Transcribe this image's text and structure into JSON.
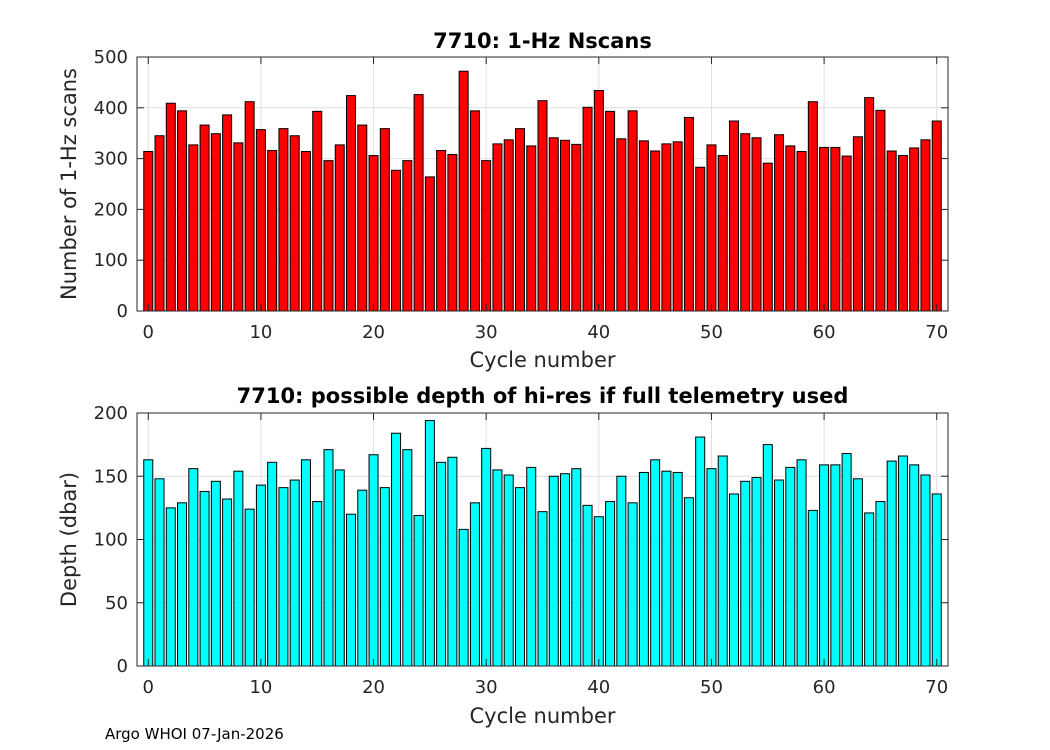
{
  "chart_data": [
    {
      "type": "bar",
      "title": "7710: 1-Hz Nscans",
      "xlabel": "Cycle number",
      "ylabel": "Number of 1-Hz scans",
      "xlim": [
        -1,
        71
      ],
      "ylim": [
        0,
        500
      ],
      "xticks": [
        0,
        10,
        20,
        30,
        40,
        50,
        60,
        70
      ],
      "yticks": [
        0,
        100,
        200,
        300,
        400,
        500
      ],
      "grid": true,
      "bar_color": "#ff0000",
      "x": [
        0,
        1,
        2,
        3,
        4,
        5,
        6,
        7,
        8,
        9,
        10,
        11,
        12,
        13,
        14,
        15,
        16,
        17,
        18,
        19,
        20,
        21,
        22,
        23,
        24,
        25,
        26,
        27,
        28,
        29,
        30,
        31,
        32,
        33,
        34,
        35,
        36,
        37,
        38,
        39,
        40,
        41,
        42,
        43,
        44,
        45,
        46,
        47,
        48,
        49,
        50,
        51,
        52,
        53,
        54,
        55,
        56,
        57,
        58,
        59,
        60,
        61,
        62,
        63,
        64,
        65,
        66,
        67,
        68,
        69,
        70
      ],
      "values": [
        314,
        345,
        409,
        394,
        327,
        366,
        349,
        386,
        331,
        412,
        357,
        316,
        359,
        345,
        314,
        393,
        296,
        327,
        424,
        366,
        306,
        359,
        277,
        296,
        426,
        264,
        316,
        308,
        472,
        394,
        296,
        329,
        337,
        359,
        325,
        414,
        341,
        336,
        328,
        401,
        434,
        393,
        339,
        394,
        335,
        315,
        329,
        333,
        381,
        283,
        327,
        306,
        374,
        349,
        341,
        291,
        347,
        325,
        314,
        412,
        322,
        322,
        305,
        343,
        420,
        395,
        315,
        306,
        321,
        337,
        374
      ]
    },
    {
      "type": "bar",
      "title": "7710: possible depth of hi-res if full telemetry used",
      "xlabel": "Cycle number",
      "ylabel": "Depth (dbar)",
      "xlim": [
        -1,
        71
      ],
      "ylim": [
        0,
        200
      ],
      "xticks": [
        0,
        10,
        20,
        30,
        40,
        50,
        60,
        70
      ],
      "yticks": [
        0,
        50,
        100,
        150,
        200
      ],
      "grid": true,
      "bar_color": "#00ffff",
      "x": [
        0,
        1,
        2,
        3,
        4,
        5,
        6,
        7,
        8,
        9,
        10,
        11,
        12,
        13,
        14,
        15,
        16,
        17,
        18,
        19,
        20,
        21,
        22,
        23,
        24,
        25,
        26,
        27,
        28,
        29,
        30,
        31,
        32,
        33,
        34,
        35,
        36,
        37,
        38,
        39,
        40,
        41,
        42,
        43,
        44,
        45,
        46,
        47,
        48,
        49,
        50,
        51,
        52,
        53,
        54,
        55,
        56,
        57,
        58,
        59,
        60,
        61,
        62,
        63,
        64,
        65,
        66,
        67,
        68,
        69,
        70
      ],
      "values": [
        163,
        148,
        125,
        129,
        156,
        138,
        146,
        132,
        154,
        124,
        143,
        161,
        141,
        147,
        163,
        130,
        171,
        155,
        120,
        139,
        167,
        141,
        184,
        171,
        119,
        194,
        161,
        165,
        108,
        129,
        172,
        155,
        151,
        141,
        157,
        122,
        150,
        152,
        156,
        127,
        118,
        130,
        150,
        129,
        153,
        163,
        154,
        153,
        133,
        181,
        156,
        166,
        136,
        146,
        149,
        175,
        147,
        157,
        163,
        123,
        159,
        159,
        168,
        148,
        121,
        130,
        162,
        166,
        159,
        151,
        136
      ]
    }
  ],
  "footer": "Argo WHOI 07-Jan-2026"
}
